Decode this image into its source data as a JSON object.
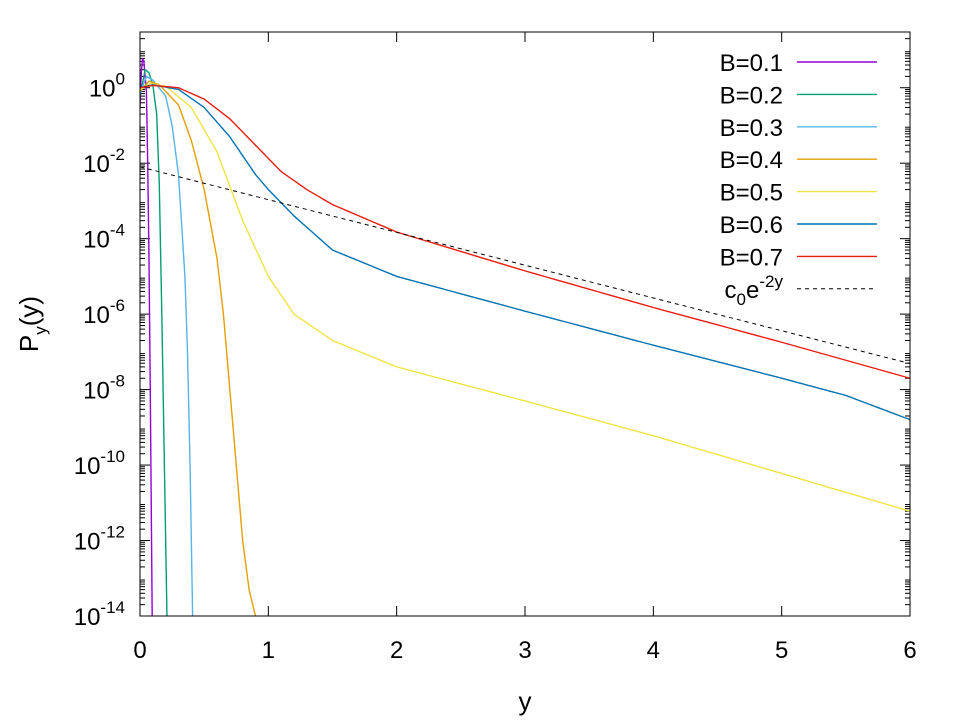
{
  "chart_data": {
    "type": "line",
    "xlabel": "y",
    "ylabel": {
      "main": "P",
      "sub": "y",
      "tail": "(y)"
    },
    "xlim": [
      0,
      6
    ],
    "ylim": [
      1e-14,
      30
    ],
    "yscale": "log",
    "grid": false,
    "legend_position": "top-right",
    "x_ticks": [
      "0",
      "1",
      "2",
      "3",
      "4",
      "5",
      "6"
    ],
    "y_ticks": [
      {
        "base": "10",
        "exp": "-14"
      },
      {
        "base": "10",
        "exp": "-12"
      },
      {
        "base": "10",
        "exp": "-10"
      },
      {
        "base": "10",
        "exp": "-8"
      },
      {
        "base": "10",
        "exp": "-6"
      },
      {
        "base": "10",
        "exp": "-4"
      },
      {
        "base": "10",
        "exp": "-2"
      },
      {
        "base": "10",
        "exp": "0"
      }
    ],
    "series": [
      {
        "name": "B=0.1",
        "color": "#9400d3",
        "dashed": false,
        "points": [
          [
            0,
            0.3
          ],
          [
            0.01,
            2.5
          ],
          [
            0.02,
            6.0
          ],
          [
            0.03,
            5.0
          ],
          [
            0.05,
            0.8
          ],
          [
            0.06,
            0.01
          ],
          [
            0.07,
            3e-05
          ],
          [
            0.08,
            1e-08
          ],
          [
            0.09,
            1e-12
          ],
          [
            0.095,
            1e-14
          ]
        ]
      },
      {
        "name": "B=0.2",
        "color": "#009e73",
        "dashed": false,
        "points": [
          [
            0,
            0.6
          ],
          [
            0.04,
            3.0
          ],
          [
            0.07,
            2.5
          ],
          [
            0.1,
            1.2
          ],
          [
            0.13,
            0.2
          ],
          [
            0.15,
            0.003
          ],
          [
            0.17,
            1e-06
          ],
          [
            0.19,
            1e-10
          ],
          [
            0.2,
            1e-12
          ],
          [
            0.21,
            1e-14
          ]
        ]
      },
      {
        "name": "B=0.3",
        "color": "#56b4e9",
        "dashed": false,
        "points": [
          [
            0,
            0.7
          ],
          [
            0.05,
            2.0
          ],
          [
            0.1,
            1.6
          ],
          [
            0.2,
            0.6
          ],
          [
            0.25,
            0.1
          ],
          [
            0.3,
            0.005
          ],
          [
            0.35,
            1e-05
          ],
          [
            0.37,
            1e-07
          ],
          [
            0.39,
            1e-10
          ],
          [
            0.4,
            1e-12
          ],
          [
            0.41,
            1e-14
          ]
        ]
      },
      {
        "name": "B=0.4",
        "color": "#e69f00",
        "dashed": false,
        "points": [
          [
            0,
            0.8
          ],
          [
            0.07,
            1.5
          ],
          [
            0.15,
            1.2
          ],
          [
            0.3,
            0.35
          ],
          [
            0.4,
            0.04
          ],
          [
            0.5,
            0.002
          ],
          [
            0.6,
            3e-05
          ],
          [
            0.65,
            1e-06
          ],
          [
            0.7,
            1e-08
          ],
          [
            0.75,
            1e-10
          ],
          [
            0.8,
            1e-12
          ],
          [
            0.85,
            5e-14
          ],
          [
            0.9,
            1e-14
          ]
        ]
      },
      {
        "name": "B=0.5",
        "color": "#f0e442",
        "dashed": false,
        "points": [
          [
            0,
            0.9
          ],
          [
            0.08,
            1.3
          ],
          [
            0.2,
            1.1
          ],
          [
            0.4,
            0.3
          ],
          [
            0.6,
            0.02
          ],
          [
            0.8,
            0.0003
          ],
          [
            1.0,
            1e-05
          ],
          [
            1.2,
            1e-06
          ],
          [
            1.5,
            2e-07
          ],
          [
            2.0,
            4e-08
          ],
          [
            3.0,
            5e-09
          ],
          [
            4.0,
            6e-10
          ],
          [
            5.0,
            6e-11
          ],
          [
            6.0,
            6e-12
          ]
        ]
      },
      {
        "name": "B=0.6",
        "color": "#0072b2",
        "dashed": false,
        "points": [
          [
            0,
            1.0
          ],
          [
            0.1,
            1.2
          ],
          [
            0.3,
            0.9
          ],
          [
            0.5,
            0.3
          ],
          [
            0.7,
            0.05
          ],
          [
            0.9,
            0.005
          ],
          [
            1.0,
            0.002
          ],
          [
            1.2,
            0.0004
          ],
          [
            1.5,
            5e-05
          ],
          [
            2.0,
            1e-05
          ],
          [
            3.0,
            1.2e-06
          ],
          [
            4.0,
            1.5e-07
          ],
          [
            5.0,
            2e-08
          ],
          [
            5.5,
            7e-09
          ],
          [
            6.0,
            1.6e-09
          ]
        ]
      },
      {
        "name": "B=0.7",
        "color": "#e51e10",
        "dashed": false,
        "points": [
          [
            0,
            1.0
          ],
          [
            0.1,
            1.15
          ],
          [
            0.3,
            1.0
          ],
          [
            0.5,
            0.5
          ],
          [
            0.7,
            0.15
          ],
          [
            0.9,
            0.03
          ],
          [
            1.1,
            0.006
          ],
          [
            1.3,
            0.002
          ],
          [
            1.5,
            0.0008
          ],
          [
            2.0,
            0.00015
          ],
          [
            3.0,
            1.4e-05
          ],
          [
            4.0,
            1.5e-06
          ],
          [
            5.0,
            1.8e-07
          ],
          [
            5.5,
            6e-08
          ],
          [
            6.0,
            2e-08
          ]
        ]
      },
      {
        "name": "c0e-2y",
        "label": {
          "c": "c",
          "sub": "0",
          "e": "e",
          "sup": "-2y"
        },
        "color": "#000000",
        "dashed": true,
        "points": [
          [
            0,
            0.008
          ],
          [
            1,
            0.00108
          ],
          [
            2,
            0.000147
          ],
          [
            3,
            1.98e-05
          ],
          [
            4,
            2.68e-06
          ],
          [
            5,
            3.63e-07
          ],
          [
            6,
            4.9e-08
          ]
        ]
      }
    ]
  }
}
